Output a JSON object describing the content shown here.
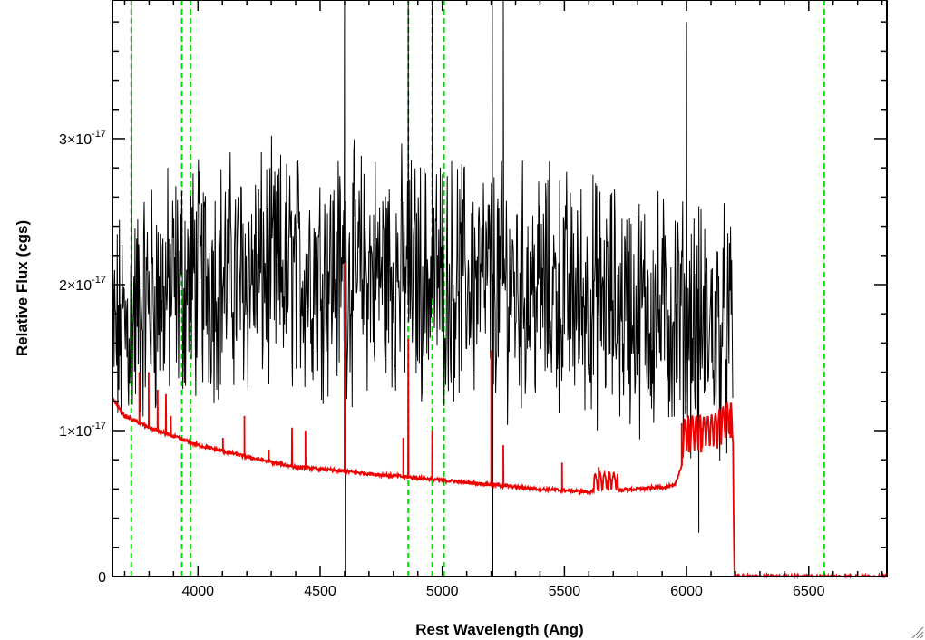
{
  "chart_data": {
    "type": "line",
    "xlabel": "Rest Wavelength (Ang)",
    "ylabel": "Relative Flux (cgs)",
    "xlim": [
      3650,
      6820
    ],
    "ylim": [
      0,
      3.95e-17
    ],
    "x_ticks": [
      4000,
      4500,
      5000,
      5500,
      6000,
      6500
    ],
    "x_tick_labels": [
      "4000",
      "4500",
      "5000",
      "5500",
      "6000",
      "6500"
    ],
    "y_ticks": [
      0,
      1e-17,
      2e-17,
      3e-17
    ],
    "y_tick_labels": [
      {
        "mantissa": "0",
        "exponent": ""
      },
      {
        "mantissa": "1×10",
        "exponent": "-17"
      },
      {
        "mantissa": "2×10",
        "exponent": "-17"
      },
      {
        "mantissa": "3×10",
        "exponent": "-17"
      }
    ],
    "vertical_lines": [
      {
        "x": 3727,
        "color": "#00dd00",
        "style": "dashed"
      },
      {
        "x": 3934,
        "color": "#00dd00",
        "style": "dashed"
      },
      {
        "x": 3969,
        "color": "#00dd00",
        "style": "dashed"
      },
      {
        "x": 4861,
        "color": "#00dd00",
        "style": "dashed"
      },
      {
        "x": 4959,
        "color": "#00dd00",
        "style": "dashed"
      },
      {
        "x": 5007,
        "color": "#00dd00",
        "style": "dashed"
      },
      {
        "x": 6563,
        "color": "#00dd00",
        "style": "dashed"
      }
    ],
    "series": [
      {
        "color": "#000000",
        "style": "noisy",
        "x_range": [
          3650,
          6190
        ],
        "level_points": [
          [
            3650,
            1.6e-17
          ],
          [
            3800,
            1.9e-17
          ],
          [
            4000,
            2.05e-17
          ],
          [
            4500,
            2.1e-17
          ],
          [
            5000,
            2.05e-17
          ],
          [
            5500,
            1.95e-17
          ],
          [
            6000,
            1.75e-17
          ],
          [
            6190,
            1.65e-17
          ]
        ],
        "noise_amplitude": 6.5e-18,
        "spikes": [
          {
            "x": 3727,
            "value": 3.95e-17
          },
          {
            "x": 4600,
            "value": 3.95e-17
          },
          {
            "x": 4603,
            "value": 0.0
          },
          {
            "x": 4861,
            "value": 3.95e-17
          },
          {
            "x": 4959,
            "value": 3.95e-17
          },
          {
            "x": 5205,
            "value": 3.95e-17
          },
          {
            "x": 5207,
            "value": 0.0
          },
          {
            "x": 5250,
            "value": 3.95e-17
          },
          {
            "x": 6000,
            "value": 3.8e-17
          },
          {
            "x": 6050,
            "value": 3e-18
          }
        ]
      },
      {
        "color": "#ee0000",
        "style": "model",
        "continuum_points": [
          [
            3650,
            1.22e-17
          ],
          [
            3700,
            1.1e-17
          ],
          [
            3800,
            1.02e-17
          ],
          [
            4000,
            9e-18
          ],
          [
            4200,
            8.2e-18
          ],
          [
            4400,
            7.5e-18
          ],
          [
            4600,
            7.2e-18
          ],
          [
            4800,
            6.9e-18
          ],
          [
            5000,
            6.6e-18
          ],
          [
            5200,
            6.3e-18
          ],
          [
            5400,
            6e-18
          ],
          [
            5600,
            5.8e-18
          ],
          [
            5800,
            6e-18
          ],
          [
            5950,
            6.2e-18
          ],
          [
            6000,
            8.5e-18
          ],
          [
            6100,
            8.5e-18
          ],
          [
            6180,
            9.5e-18
          ],
          [
            6190,
            9e-18
          ],
          [
            6195,
            0.0
          ],
          [
            6820,
            0.0
          ]
        ],
        "lines": [
          {
            "x": 3760,
            "value": 1.4e-17
          },
          {
            "x": 3798,
            "value": 1.4e-17
          },
          {
            "x": 3835,
            "value": 1.28e-17
          },
          {
            "x": 3869,
            "value": 1.25e-17
          },
          {
            "x": 3889,
            "value": 1.1e-17
          },
          {
            "x": 4102,
            "value": 9.5e-18
          },
          {
            "x": 4190,
            "value": 1.1e-17
          },
          {
            "x": 4290,
            "value": 8.7e-18
          },
          {
            "x": 4385,
            "value": 1.02e-17
          },
          {
            "x": 4440,
            "value": 1e-17
          },
          {
            "x": 4600,
            "value": 2.15e-17
          },
          {
            "x": 4840,
            "value": 9.5e-18
          },
          {
            "x": 4861,
            "value": 1.63e-17
          },
          {
            "x": 4959,
            "value": 1e-17
          },
          {
            "x": 5200,
            "value": 1.55e-17
          },
          {
            "x": 5250,
            "value": 9e-18
          },
          {
            "x": 5490,
            "value": 7.8e-18
          },
          {
            "x": 5640,
            "value": 7.5e-18
          },
          {
            "x": 5680,
            "value": 7.2e-18
          },
          {
            "x": 5980,
            "value": 1.05e-17
          },
          {
            "x": 6010,
            "value": 1e-17
          },
          {
            "x": 6060,
            "value": 1.02e-17
          },
          {
            "x": 6180,
            "value": 1.1e-17
          }
        ]
      }
    ]
  }
}
